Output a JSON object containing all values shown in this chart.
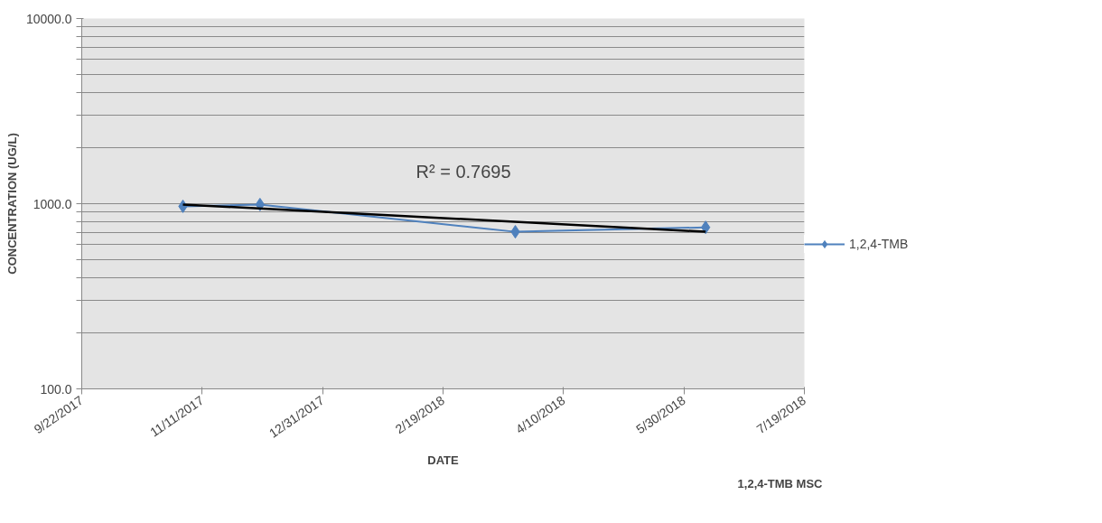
{
  "chart_data": {
    "type": "line",
    "xlabel": "DATE",
    "ylabel": "CONCENTRATION (UG/L)",
    "log": "y",
    "grid": "y",
    "legend": "right",
    "marker": "diamond",
    "line_style": "solid",
    "x": [
      "2017-11-03",
      "2017-12-05",
      "2018-03-21",
      "2018-06-08"
    ],
    "series": [
      {
        "name": "1,2,4-TMB",
        "color": "#4f81bd",
        "values": [
          968,
          990,
          705,
          745
        ]
      },
      {
        "type": "line",
        "color": "#000000",
        "marker": "none",
        "x": [
          "2017-11-03",
          "2018-06-08"
        ],
        "values": [
          990,
          705
        ]
      }
    ],
    "xlim": [
      "2017-09-22",
      "2018-07-19"
    ],
    "xticks": [
      {
        "value": "2017-09-22",
        "label": "9/22/2017"
      },
      {
        "value": "2017-11-11",
        "label": "11/11/2017"
      },
      {
        "value": "2017-12-31",
        "label": "12/31/2017"
      },
      {
        "value": "2018-02-19",
        "label": "2/19/2018"
      },
      {
        "value": "2018-04-10",
        "label": "4/10/2018"
      },
      {
        "value": "2018-05-30",
        "label": "5/30/2018"
      },
      {
        "value": "2018-07-19",
        "label": "7/19/2018"
      }
    ],
    "ylim": [
      100,
      10000
    ],
    "yticks": [
      {
        "value": 100,
        "label": "100.0"
      },
      {
        "value": 200,
        "label": null
      },
      {
        "value": 300,
        "label": null
      },
      {
        "value": 400,
        "label": null
      },
      {
        "value": 500,
        "label": null
      },
      {
        "value": 600,
        "label": null
      },
      {
        "value": 700,
        "label": null
      },
      {
        "value": 800,
        "label": null
      },
      {
        "value": 900,
        "label": null
      },
      {
        "value": 1000,
        "label": "1000.0"
      },
      {
        "value": 2000,
        "label": null
      },
      {
        "value": 3000,
        "label": null
      },
      {
        "value": 4000,
        "label": null
      },
      {
        "value": 5000,
        "label": null
      },
      {
        "value": 6000,
        "label": null
      },
      {
        "value": 7000,
        "label": null
      },
      {
        "value": 8000,
        "label": null
      },
      {
        "value": 9000,
        "label": null
      },
      {
        "value": 10000,
        "label": "10000.0"
      }
    ],
    "annotations": [
      "R² = 0.7695",
      "1,2,4-TMB MSC"
    ]
  }
}
